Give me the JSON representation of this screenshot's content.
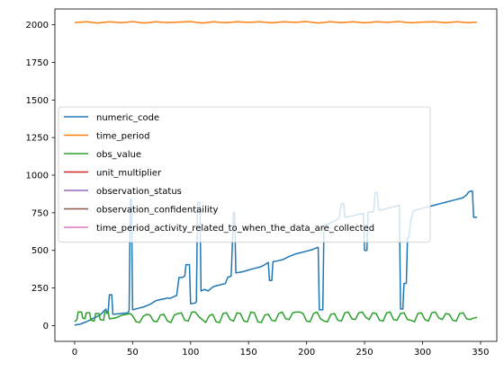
{
  "chart_data": {
    "type": "line",
    "title": "",
    "xlabel": "",
    "ylabel": "",
    "xlim": [
      -17,
      364
    ],
    "ylim": [
      -105,
      2105
    ],
    "x_ticks": [
      0,
      50,
      100,
      150,
      200,
      250,
      300,
      350
    ],
    "y_ticks": [
      0,
      250,
      500,
      750,
      1000,
      1250,
      1500,
      1750,
      2000
    ],
    "grid": false,
    "legend_placement": "center-left",
    "series": [
      {
        "name": "numeric_code",
        "color": "#1f77b4",
        "points": [
          [
            0,
            3
          ],
          [
            5,
            10
          ],
          [
            10,
            25
          ],
          [
            14,
            40
          ],
          [
            18,
            55
          ],
          [
            22,
            70
          ],
          [
            25,
            95
          ],
          [
            27,
            110
          ],
          [
            28,
            80
          ],
          [
            29,
            100
          ],
          [
            30,
            205
          ],
          [
            32,
            205
          ],
          [
            33,
            75
          ],
          [
            40,
            80
          ],
          [
            46,
            85
          ],
          [
            47,
            100
          ],
          [
            48,
            840
          ],
          [
            49,
            840
          ],
          [
            50,
            105
          ],
          [
            55,
            115
          ],
          [
            60,
            125
          ],
          [
            66,
            145
          ],
          [
            70,
            165
          ],
          [
            75,
            175
          ],
          [
            79,
            180
          ],
          [
            80,
            185
          ],
          [
            82,
            180
          ],
          [
            85,
            190
          ],
          [
            88,
            200
          ],
          [
            90,
            320
          ],
          [
            93,
            320
          ],
          [
            95,
            330
          ],
          [
            96,
            405
          ],
          [
            99,
            405
          ],
          [
            100,
            145
          ],
          [
            104,
            150
          ],
          [
            105,
            160
          ],
          [
            106,
            820
          ],
          [
            108,
            820
          ],
          [
            109,
            230
          ],
          [
            112,
            240
          ],
          [
            115,
            230
          ],
          [
            118,
            250
          ],
          [
            120,
            260
          ],
          [
            125,
            270
          ],
          [
            130,
            280
          ],
          [
            132,
            320
          ],
          [
            135,
            330
          ],
          [
            137,
            750
          ],
          [
            138,
            750
          ],
          [
            139,
            350
          ],
          [
            143,
            355
          ],
          [
            146,
            360
          ],
          [
            150,
            370
          ],
          [
            155,
            380
          ],
          [
            160,
            390
          ],
          [
            163,
            400
          ],
          [
            165,
            410
          ],
          [
            167,
            420
          ],
          [
            168,
            300
          ],
          [
            170,
            300
          ],
          [
            171,
            425
          ],
          [
            175,
            430
          ],
          [
            180,
            440
          ],
          [
            185,
            460
          ],
          [
            190,
            475
          ],
          [
            195,
            485
          ],
          [
            200,
            495
          ],
          [
            205,
            505
          ],
          [
            208,
            515
          ],
          [
            210,
            520
          ],
          [
            211,
            105
          ],
          [
            213,
            105
          ],
          [
            214,
            105
          ],
          [
            215,
            670
          ],
          [
            217,
            670
          ],
          [
            220,
            680
          ],
          [
            225,
            700
          ],
          [
            228,
            715
          ],
          [
            230,
            810
          ],
          [
            232,
            810
          ],
          [
            233,
            720
          ],
          [
            237,
            725
          ],
          [
            240,
            730
          ],
          [
            245,
            740
          ],
          [
            249,
            745
          ],
          [
            250,
            500
          ],
          [
            252,
            500
          ],
          [
            253,
            755
          ],
          [
            256,
            755
          ],
          [
            258,
            760
          ],
          [
            259,
            885
          ],
          [
            261,
            885
          ],
          [
            262,
            770
          ],
          [
            266,
            770
          ],
          [
            270,
            780
          ],
          [
            275,
            790
          ],
          [
            278,
            795
          ],
          [
            280,
            800
          ],
          [
            281,
            110
          ],
          [
            283,
            110
          ],
          [
            284,
            280
          ],
          [
            286,
            280
          ],
          [
            287,
            580
          ],
          [
            288,
            580
          ],
          [
            290,
            700
          ],
          [
            292,
            760
          ],
          [
            295,
            770
          ],
          [
            300,
            780
          ],
          [
            305,
            790
          ],
          [
            310,
            800
          ],
          [
            315,
            810
          ],
          [
            320,
            820
          ],
          [
            325,
            830
          ],
          [
            330,
            840
          ],
          [
            335,
            850
          ],
          [
            338,
            870
          ],
          [
            340,
            890
          ],
          [
            343,
            895
          ],
          [
            344,
            720
          ],
          [
            347,
            720
          ]
        ]
      },
      {
        "name": "time_period",
        "color": "#ff7f0e",
        "points": [
          [
            0,
            2015
          ],
          [
            10,
            2020
          ],
          [
            20,
            2012
          ],
          [
            30,
            2020
          ],
          [
            40,
            2014
          ],
          [
            50,
            2021
          ],
          [
            60,
            2012
          ],
          [
            70,
            2020
          ],
          [
            80,
            2015
          ],
          [
            90,
            2018
          ],
          [
            100,
            2021
          ],
          [
            110,
            2012
          ],
          [
            120,
            2020
          ],
          [
            130,
            2014
          ],
          [
            140,
            2020
          ],
          [
            150,
            2016
          ],
          [
            160,
            2020
          ],
          [
            170,
            2013
          ],
          [
            180,
            2020
          ],
          [
            190,
            2016
          ],
          [
            200,
            2021
          ],
          [
            210,
            2012
          ],
          [
            220,
            2020
          ],
          [
            230,
            2015
          ],
          [
            240,
            2020
          ],
          [
            250,
            2013
          ],
          [
            260,
            2020
          ],
          [
            270,
            2016
          ],
          [
            280,
            2021
          ],
          [
            290,
            2013
          ],
          [
            300,
            2018
          ],
          [
            310,
            2020
          ],
          [
            320,
            2014
          ],
          [
            330,
            2020
          ],
          [
            340,
            2014
          ],
          [
            347,
            2018
          ]
        ]
      },
      {
        "name": "obs_value",
        "color": "#2ca02c",
        "points": [
          [
            0,
            25
          ],
          [
            2,
            40
          ],
          [
            3,
            90
          ],
          [
            6,
            90
          ],
          [
            7,
            50
          ],
          [
            9,
            45
          ],
          [
            10,
            85
          ],
          [
            13,
            85
          ],
          [
            14,
            35
          ],
          [
            17,
            30
          ],
          [
            18,
            80
          ],
          [
            21,
            80
          ],
          [
            22,
            40
          ],
          [
            25,
            35
          ],
          [
            26,
            90
          ],
          [
            29,
            90
          ],
          [
            30,
            45
          ],
          [
            35,
            50
          ],
          [
            38,
            60
          ],
          [
            41,
            70
          ],
          [
            45,
            75
          ],
          [
            48,
            80
          ],
          [
            50,
            65
          ],
          [
            53,
            25
          ],
          [
            56,
            20
          ],
          [
            59,
            60
          ],
          [
            62,
            75
          ],
          [
            65,
            70
          ],
          [
            68,
            30
          ],
          [
            71,
            25
          ],
          [
            74,
            70
          ],
          [
            77,
            75
          ],
          [
            80,
            30
          ],
          [
            83,
            20
          ],
          [
            86,
            70
          ],
          [
            89,
            80
          ],
          [
            92,
            85
          ],
          [
            95,
            35
          ],
          [
            98,
            30
          ],
          [
            101,
            90
          ],
          [
            104,
            90
          ],
          [
            107,
            60
          ],
          [
            110,
            40
          ],
          [
            113,
            20
          ],
          [
            116,
            65
          ],
          [
            119,
            75
          ],
          [
            122,
            25
          ],
          [
            125,
            20
          ],
          [
            128,
            80
          ],
          [
            131,
            85
          ],
          [
            134,
            40
          ],
          [
            137,
            30
          ],
          [
            140,
            85
          ],
          [
            143,
            80
          ],
          [
            146,
            30
          ],
          [
            149,
            25
          ],
          [
            152,
            90
          ],
          [
            155,
            85
          ],
          [
            158,
            25
          ],
          [
            161,
            20
          ],
          [
            164,
            70
          ],
          [
            167,
            75
          ],
          [
            170,
            35
          ],
          [
            173,
            30
          ],
          [
            176,
            80
          ],
          [
            179,
            90
          ],
          [
            182,
            45
          ],
          [
            185,
            40
          ],
          [
            188,
            85
          ],
          [
            191,
            90
          ],
          [
            194,
            90
          ],
          [
            197,
            80
          ],
          [
            200,
            30
          ],
          [
            203,
            25
          ],
          [
            206,
            80
          ],
          [
            209,
            90
          ],
          [
            212,
            45
          ],
          [
            215,
            30
          ],
          [
            218,
            25
          ],
          [
            221,
            75
          ],
          [
            224,
            80
          ],
          [
            227,
            35
          ],
          [
            230,
            30
          ],
          [
            233,
            85
          ],
          [
            236,
            90
          ],
          [
            239,
            45
          ],
          [
            242,
            40
          ],
          [
            245,
            85
          ],
          [
            248,
            90
          ],
          [
            251,
            55
          ],
          [
            254,
            40
          ],
          [
            257,
            85
          ],
          [
            260,
            80
          ],
          [
            263,
            35
          ],
          [
            266,
            30
          ],
          [
            269,
            85
          ],
          [
            272,
            90
          ],
          [
            275,
            40
          ],
          [
            278,
            35
          ],
          [
            281,
            80
          ],
          [
            284,
            85
          ],
          [
            287,
            40
          ],
          [
            290,
            35
          ],
          [
            293,
            25
          ],
          [
            296,
            80
          ],
          [
            299,
            85
          ],
          [
            302,
            40
          ],
          [
            305,
            30
          ],
          [
            308,
            85
          ],
          [
            311,
            90
          ],
          [
            314,
            50
          ],
          [
            317,
            40
          ],
          [
            320,
            80
          ],
          [
            323,
            75
          ],
          [
            326,
            35
          ],
          [
            329,
            30
          ],
          [
            332,
            80
          ],
          [
            335,
            85
          ],
          [
            338,
            45
          ],
          [
            341,
            40
          ],
          [
            344,
            50
          ],
          [
            347,
            55
          ]
        ]
      },
      {
        "name": "unit_multiplier",
        "color": "#d62728",
        "points": []
      },
      {
        "name": "observation_status",
        "color": "#9467bd",
        "points": []
      },
      {
        "name": "observation_confidentaility",
        "color": "#8c564b",
        "points": []
      },
      {
        "name": "time_period_activity_related_to_when_the_data_are_collected",
        "color": "#e377c2",
        "points": []
      }
    ]
  }
}
